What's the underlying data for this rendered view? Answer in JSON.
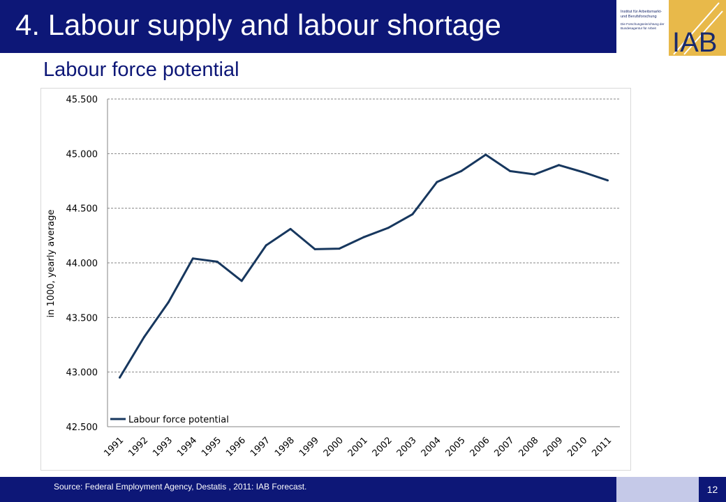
{
  "slide": {
    "title": "4. Labour supply and labour shortage",
    "subtitle": "Labour force potential",
    "footer_source": "Source: Federal Employment Agency, Destatis , 2011: IAB Forecast.",
    "page_number": "12",
    "colors": {
      "navy": "#0d1777",
      "light_blue": "#c5c9e8",
      "line": "#17375e",
      "logo_gold": "#e8b94a"
    }
  },
  "logo": {
    "line1": "Institut für Arbeitsmarkt-",
    "line2": "und Berufsforschung",
    "line3": "Die Forschungseinrichtung der",
    "line4": "Bundesagentur für Arbeit",
    "mark": "IAB"
  },
  "chart_data": {
    "type": "line",
    "title": "",
    "xlabel": "",
    "ylabel": "in 1000, yearly average",
    "categories": [
      "1991",
      "1992",
      "1993",
      "1994",
      "1995",
      "1996",
      "1997",
      "1998",
      "1999",
      "2000",
      "2001",
      "2002",
      "2003",
      "2004",
      "2005",
      "2006",
      "2007",
      "2008",
      "2009",
      "2010",
      "2011"
    ],
    "series": [
      {
        "name": "Labour force potential",
        "values": [
          42950,
          43320,
          43640,
          44040,
          44010,
          43835,
          44160,
          44310,
          44125,
          44130,
          44235,
          44320,
          44445,
          44740,
          44840,
          44990,
          44840,
          44810,
          44895,
          44830,
          44755
        ]
      }
    ],
    "ylim": [
      42500,
      45500
    ],
    "yticks": [
      "42.500",
      "43.000",
      "43.500",
      "44.000",
      "44.500",
      "45.000",
      "45.500"
    ],
    "ytick_values": [
      42500,
      43000,
      43500,
      44000,
      44500,
      45000,
      45500
    ],
    "grid": "horizontal dashed",
    "legend_position": "bottom-left inside"
  }
}
